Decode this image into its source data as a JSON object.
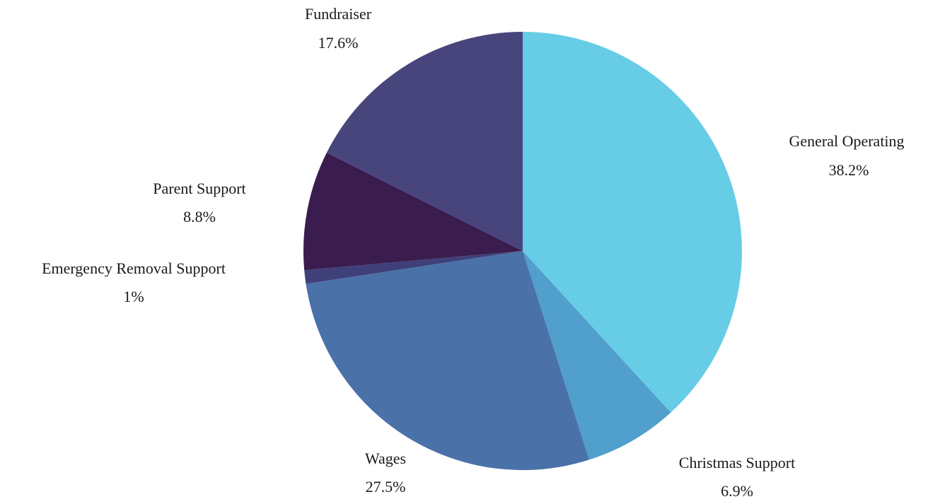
{
  "chart_data": {
    "type": "pie",
    "categories": [
      "General Operating",
      "Christmas Support",
      "Wages",
      "Emergency Removal Support",
      "Parent Support",
      "Fundraiser"
    ],
    "values": [
      38.2,
      6.9,
      27.5,
      1,
      8.8,
      17.6
    ],
    "value_labels": [
      "38.2%",
      "6.9%",
      "27.5%",
      "1%",
      "8.8%",
      "17.6%"
    ],
    "colors": [
      "#67cce6",
      "#519fcc",
      "#4a71a8",
      "#3f4079",
      "#3b1c4f",
      "#47457c"
    ]
  }
}
